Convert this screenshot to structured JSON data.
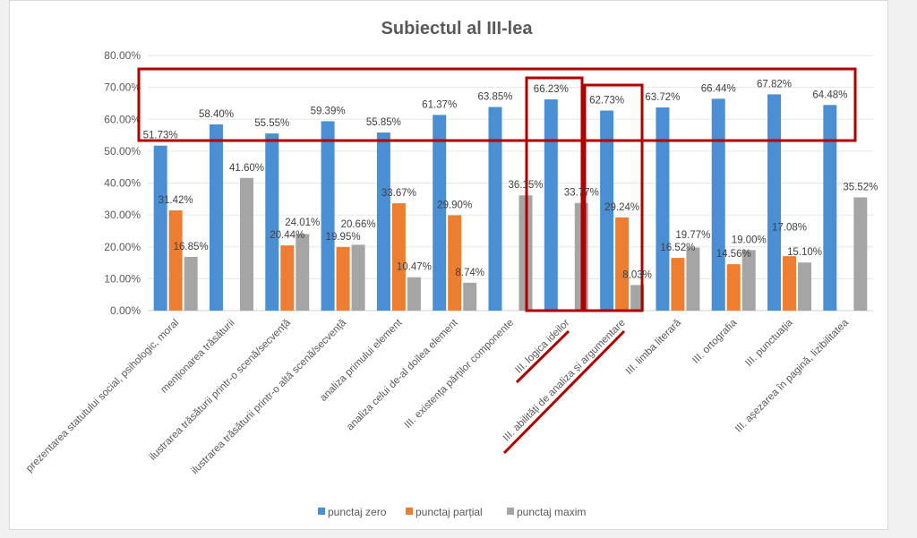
{
  "chart_data": {
    "type": "bar",
    "title": "Subiectul al III-lea",
    "xlabel": "",
    "ylabel": "",
    "ylim": [
      0,
      80
    ],
    "yticks": [
      "0.00%",
      "10.00%",
      "20.00%",
      "30.00%",
      "40.00%",
      "50.00%",
      "60.00%",
      "70.00%",
      "80.00%"
    ],
    "grid": true,
    "legend_position": "bottom",
    "categories": [
      "prezentarea statutului social, psihologic, moral",
      "menționarea trăsăturii",
      "ilustrarea trăsăturii printr-o scenă/secvență",
      "ilustrarea trăsăturii printr-o altă scenă/secvență",
      "analiza primului element",
      "analiza celui de-al doilea element",
      "III. existența părților componente",
      "III. logica ideilor",
      "III. abilități de analiza și argumentare",
      "III. limba literară",
      "III. ortografia",
      "III. punctuația",
      "III. așezarea în pagină, lizibilitatea"
    ],
    "series": [
      {
        "name": "punctaj zero",
        "color": "#4a8fd4",
        "values": [
          51.73,
          58.4,
          55.55,
          59.39,
          55.85,
          61.37,
          63.85,
          66.23,
          62.73,
          63.72,
          66.44,
          67.82,
          64.48
        ]
      },
      {
        "name": "punctaj parțial",
        "color": "#ed7d31",
        "values": [
          31.42,
          null,
          20.44,
          19.95,
          33.67,
          29.9,
          null,
          null,
          29.24,
          16.52,
          14.56,
          17.08,
          null
        ]
      },
      {
        "name": "punctaj maxim",
        "color": "#a5a5a5",
        "values": [
          16.85,
          41.6,
          24.01,
          20.66,
          10.47,
          8.74,
          36.15,
          33.77,
          8.03,
          19.77,
          19.0,
          15.1,
          35.52
        ]
      }
    ],
    "annotation_color": "#b00000"
  }
}
